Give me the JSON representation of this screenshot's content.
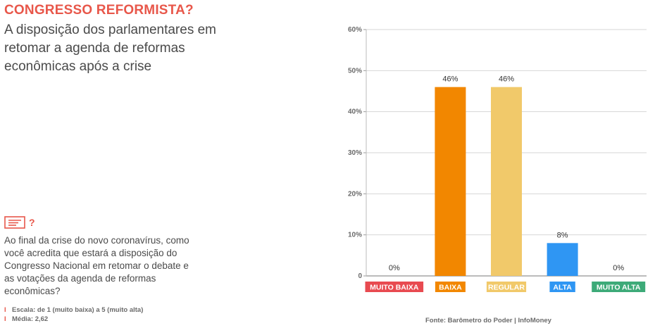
{
  "header": {
    "title": "CONGRESSO REFORMISTA?",
    "subtitle": "A disposição dos parlamentares em retomar a agenda de reformas econômicas após a crise"
  },
  "question": {
    "icon": "question-card-icon",
    "text": "Ao final da crise do novo coronavírus, como você acredita que estará a disposição do Congresso Nacional em retomar o debate e as votações da agenda de reformas econômicas?"
  },
  "notes": {
    "scale": "Escala: de 1 (muito baixa) a 5 (muito alta)",
    "mean": "Média: 2,62"
  },
  "source": "Fonte: Barômetro do Poder | InfoMoney",
  "colors": {
    "accent": "#e8574a",
    "muito_baixa": "#e84a50",
    "baixa": "#f28700",
    "regular": "#f1c96a",
    "alta": "#2f96f3",
    "muito_alta": "#3daa78"
  },
  "chart_data": {
    "type": "bar",
    "categories": [
      "MUITO BAIXA",
      "BAIXA",
      "REGULAR",
      "ALTA",
      "MUITO ALTA"
    ],
    "values": [
      0,
      46,
      46,
      8,
      0
    ],
    "data_labels": [
      "0%",
      "46%",
      "46%",
      "8%",
      "0%"
    ],
    "bar_colors": [
      "#e84a50",
      "#f28700",
      "#f1c96a",
      "#2f96f3",
      "#3daa78"
    ],
    "yticks": [
      "0",
      "10%",
      "20%",
      "30%",
      "40%",
      "50%",
      "60%"
    ],
    "ylim": [
      0,
      60
    ],
    "grid": true
  }
}
